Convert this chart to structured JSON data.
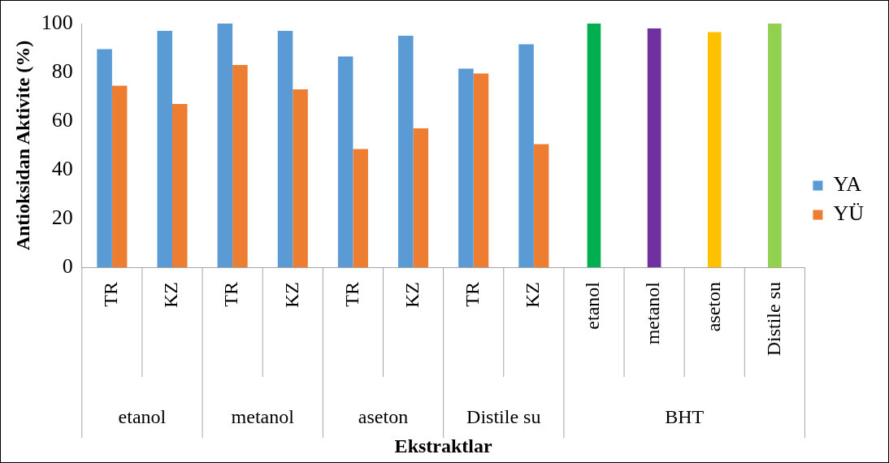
{
  "chart_data": {
    "type": "bar",
    "xlabel": "Ekstraktlar",
    "ylabel": "Antioksidan Aktivite (%)",
    "categories": [
      "TR",
      "KZ",
      "TR",
      "KZ",
      "TR",
      "KZ",
      "TR",
      "KZ",
      "etanol",
      "metanol",
      "aseton",
      "Distile su"
    ],
    "series": [
      {
        "name": "YA",
        "color": "#5b9bd5",
        "values": [
          89.5,
          97,
          100,
          97,
          86.5,
          95,
          81.5,
          91.5,
          null,
          null,
          null,
          null
        ]
      },
      {
        "name": "YÜ",
        "color": "#ed7d31",
        "values": [
          74.5,
          67,
          83,
          73,
          48.5,
          57,
          79.5,
          50.5,
          null,
          null,
          null,
          null
        ]
      },
      {
        "colors": [
          null,
          null,
          null,
          null,
          null,
          null,
          null,
          null,
          "#00b050",
          "#7030a0",
          "#ffc000",
          "#92d050"
        ],
        "values": [
          null,
          null,
          null,
          null,
          null,
          null,
          null,
          null,
          100,
          98,
          96.5,
          100
        ]
      }
    ],
    "annotations": [
      "etanol",
      "metanol",
      "aseton",
      "Distile su",
      "BHT"
    ],
    "ylim": [
      0,
      100
    ],
    "yticks": [
      0,
      20,
      40,
      60,
      80,
      100
    ],
    "grid": false,
    "legend": "right"
  }
}
